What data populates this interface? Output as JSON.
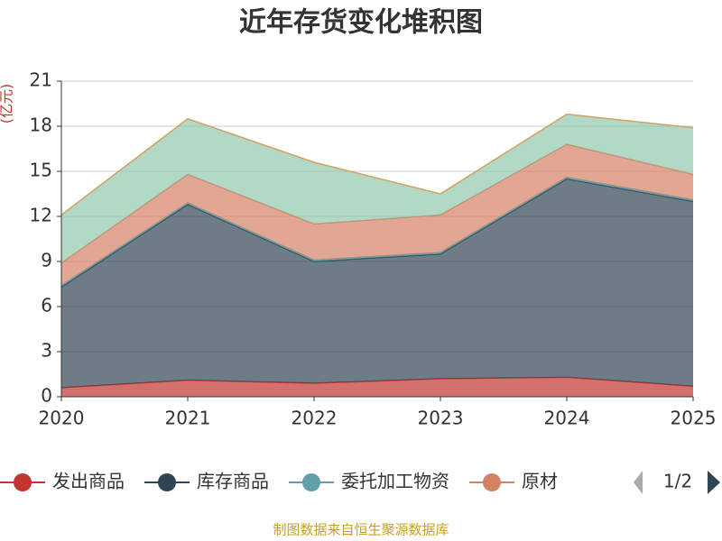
{
  "chart_data": {
    "type": "stacked_area",
    "title": "近年存货变化堆积图",
    "y_label": "(亿元)",
    "x": [
      "2020",
      "2021",
      "2022",
      "2023",
      "2024",
      "2025"
    ],
    "series": [
      {
        "name": "发出商品",
        "color": "#c23531",
        "values": [
          0.6,
          1.1,
          0.9,
          1.2,
          1.3,
          0.7
        ]
      },
      {
        "name": "库存商品",
        "color": "#2f4554",
        "values": [
          6.7,
          11.7,
          8.1,
          8.3,
          13.2,
          12.3
        ]
      },
      {
        "name": "委托加工物资",
        "color": "#61a0a8",
        "values": [
          0.1,
          0.1,
          0.1,
          0.1,
          0.1,
          0.1
        ]
      },
      {
        "name": "原材",
        "color": "#d48265",
        "values": [
          1.5,
          1.9,
          2.4,
          2.5,
          2.2,
          1.7
        ]
      },
      {
        "color": "#91c7ae",
        "line_color": "#d4a060",
        "values": [
          3.2,
          3.7,
          4.1,
          1.4,
          2.0,
          3.1
        ]
      }
    ],
    "ylim": [
      0,
      21
    ],
    "yticks": [
      0,
      3,
      6,
      9,
      12,
      15,
      18,
      21
    ],
    "grid": true,
    "legend_page": "1/2",
    "source": "制图数据来自恒生聚源数据库"
  }
}
